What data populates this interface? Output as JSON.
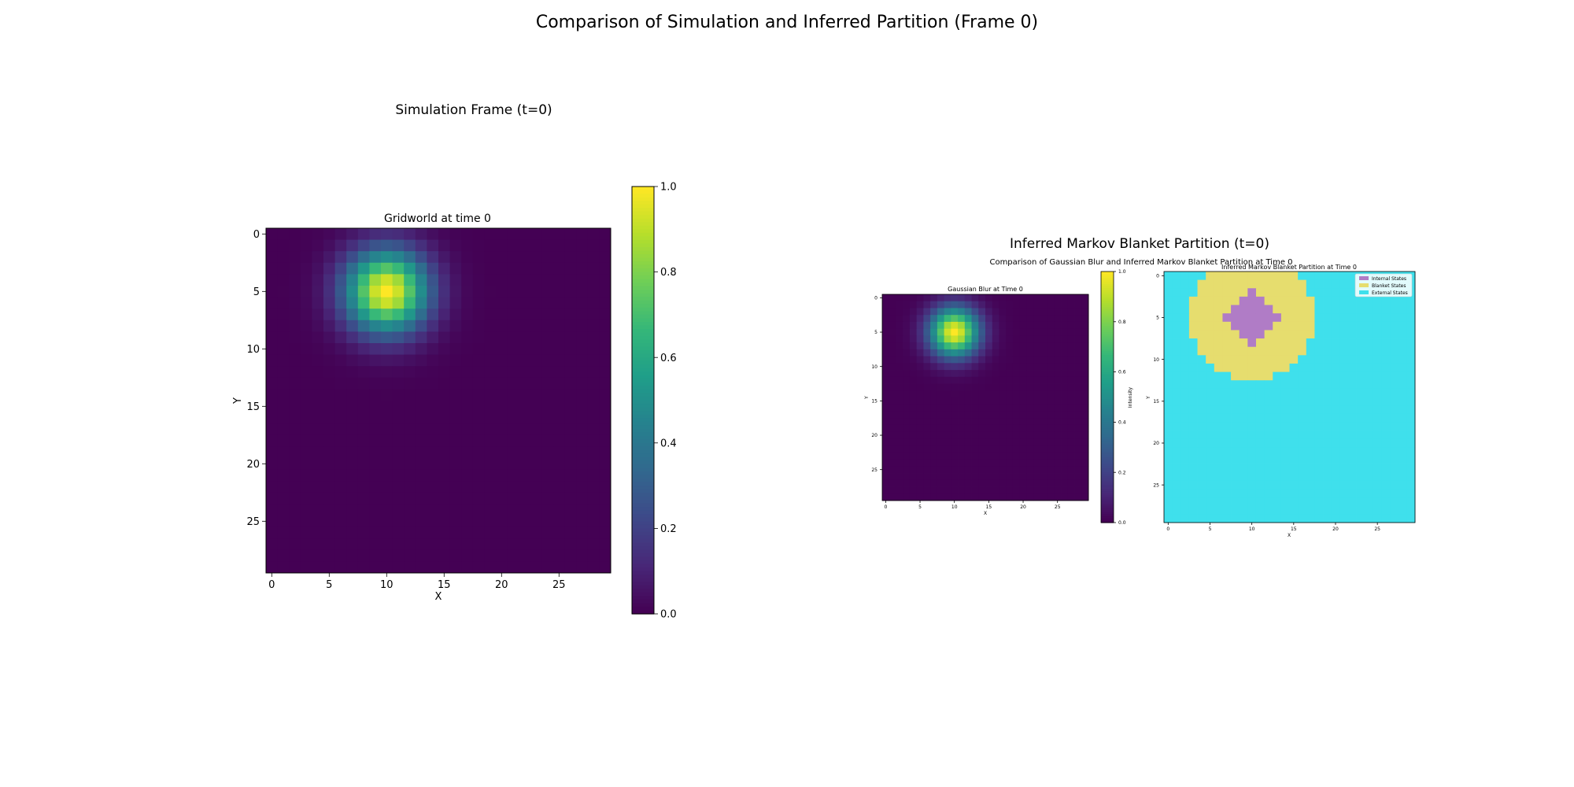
{
  "figure": {
    "title": "Comparison of Simulation and Inferred Partition (Frame 0)"
  },
  "left_panel": {
    "title": "Simulation Frame (t=0)"
  },
  "right_panel": {
    "title": "Inferred Markov Blanket Partition (t=0)",
    "subtitle": "Comparison of Gaussian Blur and Inferred Markov Blanket Partition at Time 0"
  },
  "colors": {
    "viridis": [
      "#440154",
      "#482878",
      "#3e4989",
      "#31688e",
      "#26828e",
      "#1f9e89",
      "#35b779",
      "#6ece58",
      "#b5de2b",
      "#fde725"
    ],
    "internal": "#b07cc6",
    "blanket": "#e6dd6e",
    "external": "#3fe0ec"
  },
  "chart_data": [
    {
      "id": "gridworld",
      "type": "heatmap",
      "title": "Gridworld at time 0",
      "xlabel": "X",
      "ylabel": "Y",
      "grid_size": 30,
      "xlim": [
        -0.5,
        29.5
      ],
      "ylim": [
        29.5,
        -0.5
      ],
      "xticks": [
        0,
        5,
        10,
        15,
        20,
        25
      ],
      "yticks": [
        0,
        5,
        10,
        15,
        20,
        25
      ],
      "colormap": "viridis",
      "vmin": 0.0,
      "vmax": 1.0,
      "colorbar_ticks": [
        0.0,
        0.2,
        0.4,
        0.6,
        0.8,
        1.0
      ],
      "colorbar_label": "",
      "blob": {
        "center_x": 10,
        "center_y": 5,
        "sigma": 2.5,
        "peak": 1.0
      }
    },
    {
      "id": "gaussian-blur",
      "type": "heatmap",
      "title": "Gaussian Blur at Time 0",
      "xlabel": "X",
      "ylabel": "Y",
      "grid_size": 30,
      "xlim": [
        -0.5,
        29.5
      ],
      "ylim": [
        29.5,
        -0.5
      ],
      "xticks": [
        0,
        5,
        10,
        15,
        20,
        25
      ],
      "yticks": [
        0,
        5,
        10,
        15,
        20,
        25
      ],
      "colormap": "viridis",
      "vmin": 0.0,
      "vmax": 1.0,
      "colorbar_ticks": [
        0.0,
        0.2,
        0.4,
        0.6,
        0.8,
        1.0
      ],
      "colorbar_label": "Intensity",
      "blob": {
        "center_x": 10,
        "center_y": 5,
        "sigma": 2.5,
        "peak": 1.0
      }
    },
    {
      "id": "partition",
      "type": "heatmap",
      "title": "Inferred Markov Blanket Partition at Time 0",
      "xlabel": "X",
      "ylabel": "Y",
      "grid_size": 30,
      "xlim": [
        -0.5,
        29.5
      ],
      "ylim": [
        29.5,
        -0.5
      ],
      "xticks": [
        0,
        5,
        10,
        15,
        20,
        25
      ],
      "yticks": [
        0,
        5,
        10,
        15,
        20,
        25
      ],
      "legend": [
        "Internal States",
        "Blanket States",
        "External States"
      ],
      "legend_position": "top-right",
      "center": {
        "x": 10,
        "y": 5
      },
      "internal_radius": 2,
      "blanket_radius": 7.5
    }
  ]
}
